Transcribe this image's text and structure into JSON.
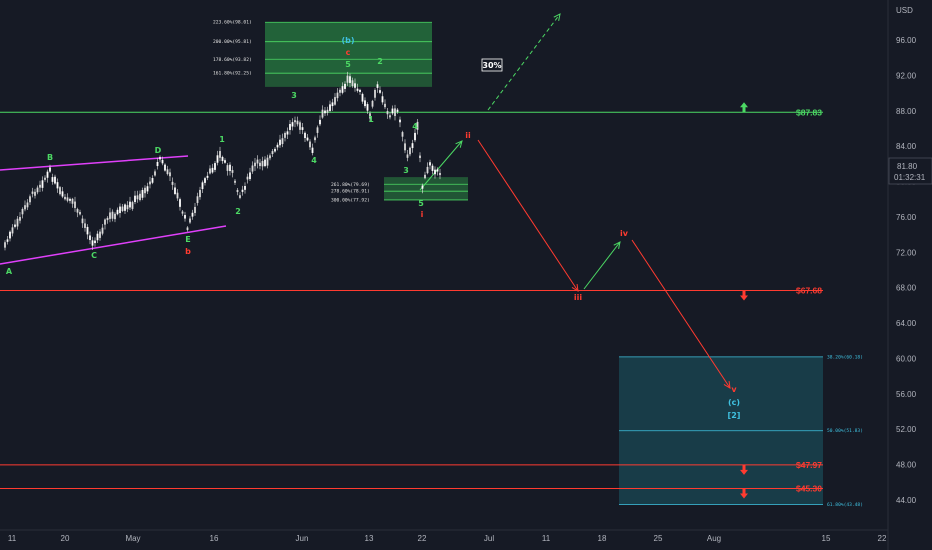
{
  "currency": "USD",
  "price_badge": {
    "price": "81.80",
    "countdown": "01:32:31"
  },
  "colors": {
    "background": "#161a25",
    "up_candle": "#ffffff",
    "down_candle": "#ffffff",
    "green": "#4cd964",
    "red": "#ff3b30",
    "magenta": "#e040fb",
    "blue": "#3fc1e0",
    "axis_text": "#b2b5be"
  },
  "percent_badge": "30%",
  "chart_data": {
    "type": "candlestick",
    "y_ticks": [
      "96.00",
      "92.00",
      "88.00",
      "84.00",
      "80.00",
      "76.00",
      "72.00",
      "68.00",
      "64.00",
      "60.00",
      "56.00",
      "52.00",
      "48.00",
      "44.00"
    ],
    "y_range": [
      42.5,
      101.5
    ],
    "x_ticks": [
      "11",
      "20",
      "May",
      "16",
      "Jun",
      "13",
      "22",
      "Jul",
      "11",
      "18",
      "25",
      "Aug",
      "15",
      "22"
    ],
    "levels": [
      {
        "label": "$87.83",
        "value": 87.83,
        "color": "#4cd964",
        "arrow": "up"
      },
      {
        "label": "$67.68",
        "value": 67.68,
        "color": "#ff3b30",
        "arrow": "down"
      },
      {
        "label": "$47.97",
        "value": 47.97,
        "color": "#ff3b30",
        "arrow": "down"
      },
      {
        "label": "$45.30",
        "value": 45.3,
        "color": "#ff3b30",
        "arrow": "down"
      }
    ],
    "top_fib_zone": [
      {
        "label": "223.60%(98.01)",
        "value": 98.01
      },
      {
        "label": "200.00%(95.81)",
        "value": 95.81
      },
      {
        "label": "178.60%(93.82)",
        "value": 93.82
      },
      {
        "label": "161.80%(92.25)",
        "value": 92.25
      }
    ],
    "mid_fib_zone": [
      {
        "label": "261.80%(79.69)",
        "value": 79.69
      },
      {
        "label": "278.60%(78.91)",
        "value": 78.91
      },
      {
        "label": "300.00%(77.92)",
        "value": 77.92
      }
    ],
    "target_zone": [
      {
        "label": "38.20%(60.18)",
        "value": 60.18
      },
      {
        "label": "50.00%(51.83)",
        "value": 51.83
      },
      {
        "label": "61.80%(43.48)",
        "value": 43.48
      }
    ],
    "wave_labels_green": [
      "A",
      "B",
      "C",
      "D",
      "E",
      "1",
      "2",
      "3",
      "4",
      "5",
      "2",
      "1",
      "3",
      "4",
      "5",
      "3",
      "5"
    ],
    "wave_labels_red": [
      "b",
      "i",
      "ii",
      "iii",
      "iv",
      "v"
    ],
    "wave_labels_blue": [
      "(b)",
      "(c)",
      "[2]"
    ],
    "wave_label_red_c": "c"
  }
}
